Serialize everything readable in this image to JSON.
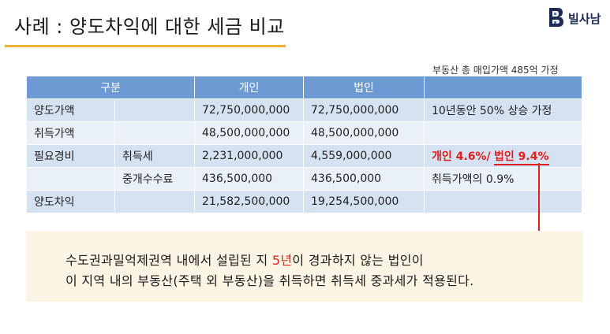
{
  "title": "사례 : 양도차익에 대한 세금 비교",
  "brand": {
    "name": "빌사남",
    "color": "#1c2c56"
  },
  "note": "부동산 총 매입가액 485억 가정",
  "table": {
    "headers": [
      "구분",
      "개인",
      "법인",
      ""
    ],
    "rows": [
      [
        "양도가액",
        "",
        "72,750,000,000",
        "72,750,000,000",
        "10년동안 50% 상승 가정"
      ],
      [
        "취득가액",
        "",
        "48,500,000,000",
        "48,500,000,000",
        ""
      ],
      [
        "필요경비",
        "취득세",
        "2,231,000,000",
        "4,559,000,000",
        ""
      ],
      [
        "",
        "중개수수료",
        "436,500,000",
        "436,500,000",
        "취득가액의 0.9%"
      ],
      [
        "양도차익",
        "",
        "21,582,500,000",
        "19,254,500,000",
        ""
      ]
    ],
    "rate_note": {
      "personal": "개인 4.6%/",
      "corporate": "법인 9.4%"
    }
  },
  "info": {
    "line1_pre": "수도권과밀억제권역 내에서 설립된 지 ",
    "line1_hl": "5년",
    "line1_post": "이 경과하지 않는 법인이",
    "line2": "이 지역 내의 부동산(주택 외 부동산)을 취득하면 취득세 중과세가 적용된다."
  },
  "colors": {
    "header": "#6d9ad3",
    "accent": "#f2b233",
    "highlight": "#e21f1f",
    "box": "#fdf5e4"
  }
}
